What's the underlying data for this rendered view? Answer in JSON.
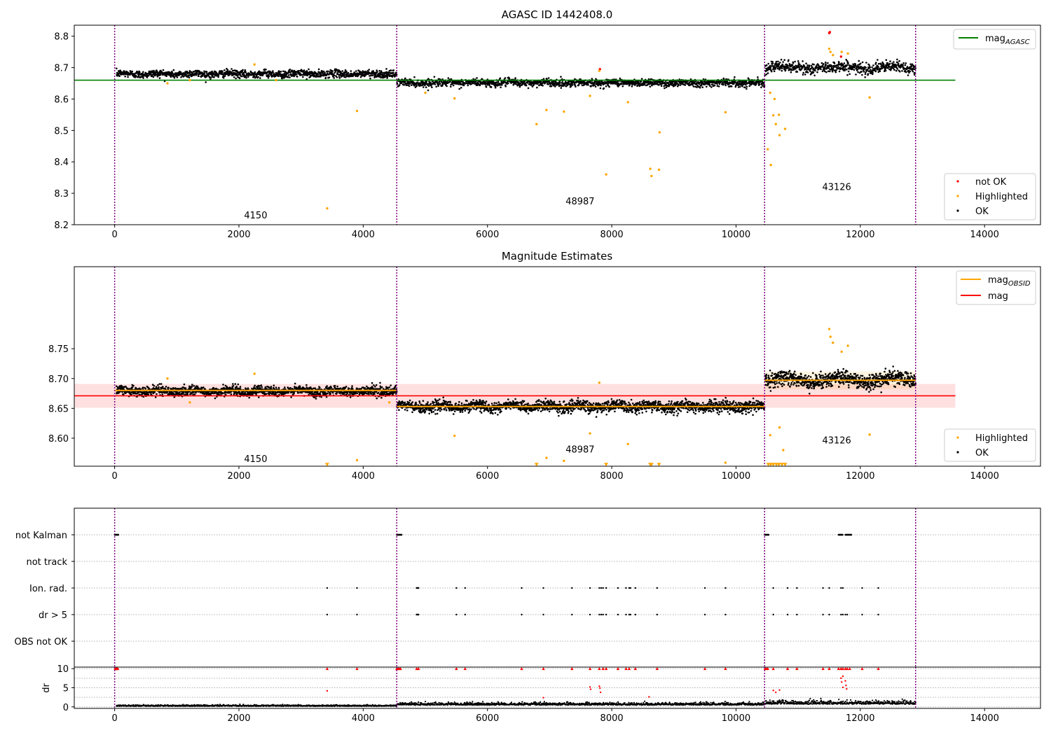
{
  "chart_data": [
    {
      "type": "scatter",
      "title": "AGASC ID 1442408.0",
      "xlim": [
        -650,
        14900
      ],
      "ylim": [
        8.2,
        8.835
      ],
      "x_ticks": [
        0,
        2000,
        4000,
        6000,
        8000,
        10000,
        12000,
        14000
      ],
      "y_ticks": [
        8.2,
        8.3,
        8.4,
        8.5,
        8.6,
        8.7,
        8.8
      ],
      "y_tick_decimals": 1,
      "segment_boundaries": [
        0,
        4540,
        10460,
        12890
      ],
      "segments": [
        {
          "label": "4150",
          "label_x": 2270,
          "label_y": 8.22,
          "x_start": 30,
          "x_end": 4540,
          "mean": 8.68,
          "noise": 0.012
        },
        {
          "label": "48987",
          "label_x": 7490,
          "label_y": 8.265,
          "x_start": 4545,
          "x_end": 10460,
          "mean": 8.652,
          "noise": 0.012
        },
        {
          "label": "43126",
          "label_x": 11620,
          "label_y": 8.31,
          "x_start": 10465,
          "x_end": 12890,
          "mean": 8.7,
          "noise": 0.018
        }
      ],
      "reference_lines": [
        {
          "name": "mag_AGASC",
          "value": 8.66,
          "x_start": -650,
          "x_end": 13530,
          "color": "#008000"
        }
      ],
      "series": [
        {
          "name": "not OK",
          "color": "#ff0000",
          "points": [
            [
              11510,
              8.813
            ],
            [
              11500,
              8.81
            ],
            [
              7810,
              8.695
            ],
            [
              11690,
              8.735
            ]
          ]
        },
        {
          "name": "Highlighted",
          "color": "#ffa500",
          "points": [
            [
              3420,
              8.252
            ],
            [
              3900,
              8.562
            ],
            [
              5470,
              8.602
            ],
            [
              6790,
              8.52
            ],
            [
              6950,
              8.565
            ],
            [
              7230,
              8.56
            ],
            [
              7650,
              8.61
            ],
            [
              7910,
              8.36
            ],
            [
              8260,
              8.59
            ],
            [
              8640,
              8.355
            ],
            [
              8620,
              8.378
            ],
            [
              8760,
              8.375
            ],
            [
              8770,
              8.494
            ],
            [
              9830,
              8.558
            ],
            [
              10510,
              8.44
            ],
            [
              10560,
              8.39
            ],
            [
              10600,
              8.548
            ],
            [
              10640,
              8.52
            ],
            [
              10690,
              8.55
            ],
            [
              10700,
              8.485
            ],
            [
              10790,
              8.505
            ],
            [
              10620,
              8.6
            ],
            [
              10550,
              8.62
            ],
            [
              12150,
              8.605
            ],
            [
              11500,
              8.76
            ],
            [
              11520,
              8.75
            ],
            [
              11560,
              8.74
            ],
            [
              11700,
              8.75
            ],
            [
              11800,
              8.745
            ],
            [
              1210,
              8.66
            ],
            [
              2250,
              8.71
            ],
            [
              7800,
              8.69
            ],
            [
              5000,
              8.62
            ],
            [
              2600,
              8.66
            ],
            [
              850,
              8.65
            ]
          ]
        },
        {
          "name": "OK",
          "color": "#000000",
          "points": []
        }
      ],
      "legend": {
        "placement": "top-right and bottom-right",
        "entries": [
          "mag_AGASC",
          "not OK",
          "Highlighted",
          "OK"
        ]
      }
    },
    {
      "type": "scatter",
      "title": "Magnitude Estimates",
      "xlim": [
        -650,
        14900
      ],
      "ylim": [
        8.553,
        8.8875
      ],
      "x_ticks": [
        0,
        2000,
        4000,
        6000,
        8000,
        10000,
        12000,
        14000
      ],
      "y_ticks": [
        8.6,
        8.65,
        8.7,
        8.75
      ],
      "y_tick_decimals": 2,
      "segment_boundaries": [
        0,
        4540,
        10460,
        12890
      ],
      "segments": [
        {
          "label": "4150",
          "label_x": 2270,
          "label_y": 8.56,
          "x_start": 30,
          "x_end": 4540,
          "mean": 8.679,
          "noise": 0.008
        },
        {
          "label": "48987",
          "label_x": 7490,
          "label_y": 8.576,
          "x_start": 4545,
          "x_end": 10460,
          "mean": 8.653,
          "noise": 0.009
        },
        {
          "label": "43126",
          "label_x": 11620,
          "label_y": 8.591,
          "x_start": 10465,
          "x_end": 12890,
          "mean": 8.698,
          "noise": 0.012
        }
      ],
      "reference_lines": [
        {
          "name": "mag",
          "value": 8.671,
          "band": [
            8.651,
            8.691
          ],
          "x_start": -650,
          "x_end": 13530,
          "color": "#ff0000"
        }
      ],
      "obsid_means": [
        {
          "x_start": 0,
          "x_end": 4540,
          "value": 8.68
        },
        {
          "x_start": 4540,
          "x_end": 10460,
          "value": 8.653
        },
        {
          "x_start": 10460,
          "x_end": 12890,
          "value": 8.697,
          "band": [
            8.682,
            8.712
          ]
        }
      ],
      "series": [
        {
          "name": "mag_OBSID",
          "color": "#ffa500"
        },
        {
          "name": "mag",
          "color": "#ff0000"
        },
        {
          "name": "Highlighted",
          "color": "#ffa500",
          "points": [
            [
              3900,
              8.563
            ],
            [
              5470,
              8.604
            ],
            [
              6950,
              8.567
            ],
            [
              7230,
              8.562
            ],
            [
              7650,
              8.608
            ],
            [
              8260,
              8.59
            ],
            [
              9830,
              8.559
            ],
            [
              10550,
              8.605
            ],
            [
              10700,
              8.618
            ],
            [
              10760,
              8.58
            ],
            [
              12150,
              8.606
            ],
            [
              11500,
              8.783
            ],
            [
              11520,
              8.77
            ],
            [
              11560,
              8.76
            ],
            [
              11700,
              8.745
            ],
            [
              11800,
              8.755
            ],
            [
              1210,
              8.66
            ],
            [
              2250,
              8.708
            ],
            [
              7800,
              8.693
            ],
            [
              850,
              8.7
            ],
            [
              4420,
              8.66
            ]
          ]
        },
        {
          "name": "OK",
          "color": "#000000",
          "points": []
        }
      ],
      "clipped_markers": {
        "y": 8.555,
        "x": [
          3420,
          6790,
          7910,
          8620,
          8640,
          8760,
          10520,
          10560,
          10600,
          10650,
          10690,
          10740,
          10790
        ]
      },
      "legend": {
        "placement": "top-right and bottom-right",
        "entries": [
          "mag_OBSID",
          "mag",
          "Highlighted",
          "OK"
        ]
      }
    },
    {
      "type": "scatter",
      "title": "",
      "xlim": [
        -650,
        14900
      ],
      "categories": [
        "not Kalman",
        "not track",
        "Ion. rad.",
        "dr > 5",
        "OBS not OK"
      ],
      "flag_points": {
        "not Kalman": [
          [
            0,
            60
          ],
          [
            4540,
            4620
          ],
          [
            10460,
            10530
          ],
          [
            11650,
            11720
          ],
          [
            11760,
            11860
          ]
        ],
        "not track": [],
        "Ion. rad.": [
          3420,
          3900,
          4860,
          4870,
          4880,
          4890,
          5500,
          5640,
          6550,
          6900,
          7360,
          7650,
          7800,
          7830,
          7860,
          7910,
          8100,
          8230,
          8280,
          8300,
          8380,
          8730,
          9500,
          9830,
          10600,
          10830,
          10980,
          11400,
          11500,
          11690,
          11720,
          12030,
          12290
        ],
        "dr > 5": [
          3420,
          3900,
          4860,
          4870,
          4880,
          4890,
          5500,
          5640,
          6550,
          6900,
          7360,
          7650,
          7800,
          7830,
          7860,
          7910,
          8100,
          8230,
          8280,
          8300,
          8380,
          8730,
          9500,
          9830,
          10600,
          10830,
          10980,
          11400,
          11500,
          11690,
          11720,
          11760,
          11790,
          12030,
          12290
        ],
        "OBS not OK": []
      },
      "segment_boundaries": [
        0,
        4540,
        10460,
        12890
      ]
    },
    {
      "type": "scatter",
      "title": "",
      "ylabel": "dr",
      "xlim": [
        -650,
        14900
      ],
      "ylim": [
        -0.4,
        10.4
      ],
      "x_ticks": [
        0,
        2000,
        4000,
        6000,
        8000,
        10000,
        12000,
        14000
      ],
      "y_ticks": [
        0,
        5,
        10
      ],
      "y_tick_decimals": 0,
      "segment_boundaries": [
        0,
        4540,
        10460,
        12890
      ],
      "segments": [
        {
          "x_start": 30,
          "x_end": 4540,
          "mean": 0.25,
          "noise": 0.15
        },
        {
          "x_start": 4545,
          "x_end": 10460,
          "mean": 0.6,
          "noise": 0.3
        },
        {
          "x_start": 10465,
          "x_end": 12890,
          "mean": 0.9,
          "noise": 0.45
        }
      ],
      "capped_points_y": 10,
      "capped_points_x": [
        10,
        20,
        30,
        40,
        50,
        3420,
        3900,
        4540,
        4560,
        4580,
        4600,
        4860,
        4890,
        5500,
        5640,
        6550,
        6900,
        7360,
        7650,
        7800,
        7860,
        7910,
        8100,
        8230,
        8280,
        8380,
        8730,
        9500,
        9830,
        10470,
        10490,
        10510,
        10600,
        10830,
        10980,
        11400,
        11500,
        11650,
        11690,
        11720,
        11760,
        11790,
        11830,
        12030,
        12290
      ],
      "red_points": [
        [
          3420,
          4.2
        ],
        [
          7650,
          5.2
        ],
        [
          7660,
          4.6
        ],
        [
          7800,
          5.4
        ],
        [
          7810,
          4.9
        ],
        [
          7820,
          3.8
        ],
        [
          10600,
          4.3
        ],
        [
          10640,
          3.8
        ],
        [
          10700,
          4.4
        ],
        [
          11690,
          7.5
        ],
        [
          11700,
          6.5
        ],
        [
          11720,
          8.0
        ],
        [
          11760,
          6.8
        ],
        [
          11770,
          5.6
        ],
        [
          11780,
          4.7
        ],
        [
          11720,
          5.1
        ],
        [
          8600,
          2.6
        ],
        [
          6900,
          2.4
        ]
      ]
    }
  ]
}
